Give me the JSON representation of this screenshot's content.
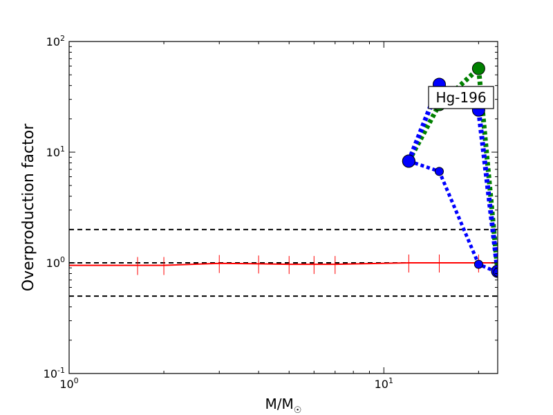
{
  "chart_data": {
    "type": "line",
    "xscale": "log",
    "yscale": "log",
    "xlim": [
      1,
      23
    ],
    "ylim": [
      0.1,
      100
    ],
    "xlabel": "M/M",
    "xlabel_sub": "☉",
    "ylabel": "Overproduction factor",
    "x_ticks": [
      {
        "value": 1,
        "base": "10",
        "exp": "0"
      },
      {
        "value": 10,
        "base": "10",
        "exp": "1"
      }
    ],
    "y_ticks": [
      {
        "value": 0.1,
        "base": "10",
        "exp": "-1"
      },
      {
        "value": 1,
        "base": "10",
        "exp": "0"
      },
      {
        "value": 10,
        "base": "10",
        "exp": "1"
      },
      {
        "value": 100,
        "base": "10",
        "exp": "2"
      }
    ],
    "annotation": "Hg-196",
    "reference_lines": [
      0.5,
      1.0,
      2.0
    ],
    "series": [
      {
        "style": "solid-red-errorbars",
        "color": "#ff0000",
        "x": [
          1,
          1.65,
          2,
          3,
          4,
          5,
          6,
          7,
          12,
          15,
          20,
          23
        ],
        "y": [
          0.95,
          0.95,
          0.95,
          0.99,
          0.98,
          0.97,
          0.97,
          0.97,
          1.0,
          1.0,
          1.0,
          1.0
        ]
      },
      {
        "style": "dotted-green-thick",
        "color": "#008000",
        "x": [
          12,
          15,
          20,
          23
        ],
        "y": [
          8.3,
          27,
          57,
          0.84
        ]
      },
      {
        "style": "dotted-blue-thick",
        "color": "#0000ff",
        "x": [
          12,
          15,
          20,
          23
        ],
        "y": [
          8.3,
          41,
          24,
          0.84
        ]
      },
      {
        "style": "dotted-blue-thin",
        "color": "#0000ff",
        "x": [
          12,
          15,
          20,
          23
        ],
        "y": [
          8.3,
          6.7,
          0.97,
          0.82
        ]
      }
    ]
  }
}
